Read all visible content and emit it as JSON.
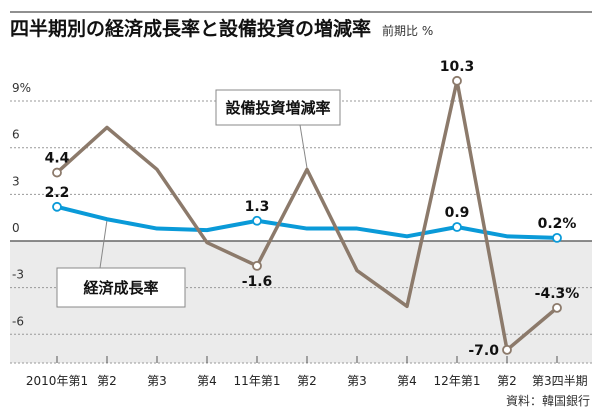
{
  "chart_data": {
    "type": "line",
    "title": "四半期別の経済成長率と設備投資の増減率",
    "subtitle": "前期比 %",
    "source": "資料：韓国銀行",
    "categories": [
      "2010年第1",
      "第2",
      "第3",
      "第4",
      "11年第1",
      "第2",
      "第3",
      "第4",
      "12年第1",
      "第2",
      "第3四半期"
    ],
    "ylim": [
      -7.8,
      10.5
    ],
    "yticks": [
      9,
      6,
      3,
      0,
      -3,
      -6
    ],
    "ytick_labels": [
      "9%",
      "6",
      "3",
      "0",
      "-3",
      "-6"
    ],
    "grid": true,
    "negative_region_shaded": true,
    "series": [
      {
        "name": "設備投資増減率",
        "color": "#8c7a6b",
        "values": [
          4.4,
          7.3,
          4.6,
          -0.1,
          -1.6,
          4.6,
          -1.9,
          -4.2,
          10.3,
          -7.0,
          -4.3
        ],
        "labels": {
          "0": "4.4",
          "4": "-1.6",
          "8": "10.3",
          "9": "-7.0",
          "10": "-4.3%"
        }
      },
      {
        "name": "経済成長率",
        "color": "#0a9ad8",
        "values": [
          2.2,
          1.4,
          0.8,
          0.7,
          1.3,
          0.8,
          0.8,
          0.3,
          0.9,
          0.3,
          0.2
        ],
        "labels": {
          "0": "2.2",
          "4": "1.3",
          "8": "0.9",
          "10": "0.2%"
        }
      }
    ]
  }
}
